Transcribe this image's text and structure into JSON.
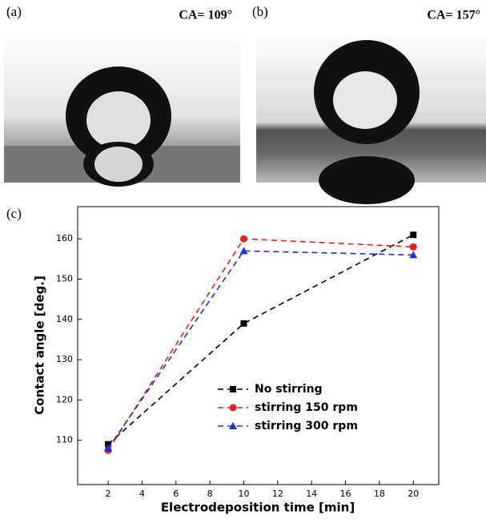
{
  "panels": [
    {
      "label": "(a)",
      "caption": "CA= 109°"
    },
    {
      "label": "(b)",
      "caption": "CA= 157°"
    }
  ],
  "chart_data": {
    "type": "line",
    "label": "(c)",
    "x_label": "Electrodeposition time [min]",
    "y_label": "Contact angle [deg.]",
    "x": [
      2,
      10,
      20
    ],
    "series": [
      {
        "name": "No stirring",
        "color": "#000000",
        "marker": "square",
        "values": [
          109,
          139,
          161
        ]
      },
      {
        "name": "stirring 150 rpm",
        "color": "#e8201c",
        "marker": "circle",
        "values": [
          107.5,
          160,
          158
        ]
      },
      {
        "name": "stirring 300 rpm",
        "color": "#1f2fd8",
        "marker": "triangle",
        "values": [
          108,
          157,
          156
        ]
      }
    ],
    "xlim": [
      0.2,
      21.5
    ],
    "xticks": [
      2,
      4,
      6,
      8,
      10,
      12,
      14,
      16,
      18,
      20
    ],
    "ylim": [
      99,
      168
    ],
    "yticks": [
      110,
      120,
      130,
      140,
      150,
      160
    ]
  }
}
